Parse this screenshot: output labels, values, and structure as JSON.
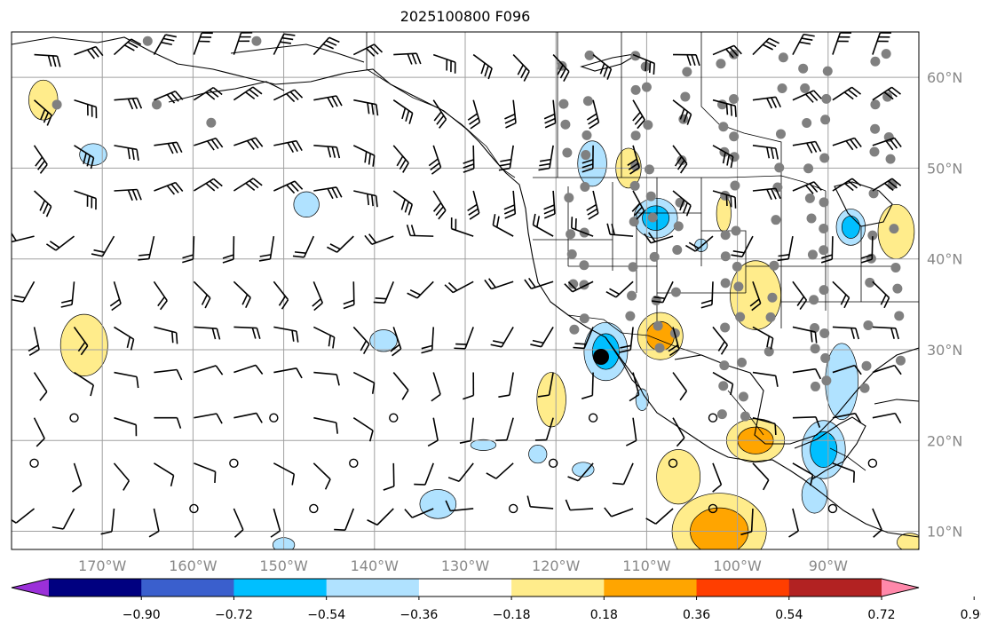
{
  "title": "2025100800 F096",
  "map": {
    "projection": "PlateCarree",
    "lon_range": [
      -180,
      -80
    ],
    "lat_range": [
      8,
      65
    ],
    "gridlines": true,
    "lon_labels": [
      "170°W",
      "160°W",
      "150°W",
      "140°W",
      "130°W",
      "120°W",
      "110°W",
      "100°W",
      "90°W"
    ],
    "lat_labels": [
      "60°N",
      "50°N",
      "40°N",
      "30°N",
      "20°N",
      "10°N"
    ]
  },
  "colorbar": {
    "extend": "both",
    "levels": [
      -1.08,
      -0.9,
      -0.72,
      -0.54,
      -0.36,
      -0.18,
      0.18,
      0.36,
      0.54,
      0.72,
      0.9,
      1.08
    ],
    "tick_labels": [
      "−0.90",
      "−0.72",
      "−0.54",
      "−0.36",
      "−0.18",
      "0.18",
      "0.36",
      "0.54",
      "0.72",
      "0.90"
    ],
    "colors": [
      "#9b30d9",
      "#000080",
      "#3a5fcd",
      "#00bfff",
      "#b0e2ff",
      "#ffffff",
      "#ffec8b",
      "#ffa500",
      "#ff3e00",
      "#b22222",
      "#ff88aa"
    ]
  },
  "colors": {
    "land": "#ffffff",
    "coast": "#000000",
    "grid": "#a0a0a0",
    "station_dot": "#808080"
  },
  "chart_data": {
    "type": "heatmap",
    "variable_title": "2025100800 F096",
    "blobs": [
      {
        "lon": -176.5,
        "lat": 57.5,
        "rlon": 1.6,
        "rlat": 2.2,
        "value": 0.45
      },
      {
        "lon": -171.0,
        "lat": 51.5,
        "rlon": 1.5,
        "rlat": 1.2,
        "value": -0.45
      },
      {
        "lon": -172.0,
        "lat": 30.5,
        "rlon": 2.6,
        "rlat": 3.4,
        "value": 0.45
      },
      {
        "lon": -147.5,
        "lat": 46.0,
        "rlon": 1.4,
        "rlat": 1.4,
        "value": -0.4
      },
      {
        "lon": -139.0,
        "lat": 31.0,
        "rlon": 1.5,
        "rlat": 1.2,
        "value": -0.45
      },
      {
        "lon": -120.5,
        "lat": 24.5,
        "rlon": 1.6,
        "rlat": 3.0,
        "value": 0.5
      },
      {
        "lon": -116.0,
        "lat": 50.5,
        "rlon": 1.6,
        "rlat": 2.5,
        "value": -0.45
      },
      {
        "lon": -112.0,
        "lat": 50.0,
        "rlon": 1.4,
        "rlat": 2.2,
        "value": 0.45
      },
      {
        "lon": -109.0,
        "lat": 44.5,
        "rlon": 2.4,
        "rlat": 2.2,
        "value": -0.6
      },
      {
        "lon": -114.5,
        "lat": 29.8,
        "rlon": 2.4,
        "rlat": 3.2,
        "value": -0.7
      },
      {
        "lon": -108.5,
        "lat": 31.5,
        "rlon": 2.5,
        "rlat": 2.6,
        "value": 0.65
      },
      {
        "lon": -101.5,
        "lat": 45.0,
        "rlon": 0.8,
        "rlat": 2.0,
        "value": 0.45
      },
      {
        "lon": -98.0,
        "lat": 36.0,
        "rlon": 2.8,
        "rlat": 3.8,
        "value": 0.5
      },
      {
        "lon": -106.5,
        "lat": 16.0,
        "rlon": 2.4,
        "rlat": 3.0,
        "value": 0.45
      },
      {
        "lon": -102.0,
        "lat": 10.0,
        "rlon": 5.2,
        "rlat": 4.2,
        "value": 0.55
      },
      {
        "lon": -98.0,
        "lat": 20.0,
        "rlon": 3.2,
        "rlat": 2.4,
        "value": 0.6
      },
      {
        "lon": -88.5,
        "lat": 26.5,
        "rlon": 1.8,
        "rlat": 4.2,
        "value": -0.45
      },
      {
        "lon": -90.5,
        "lat": 19.0,
        "rlon": 2.4,
        "rlat": 3.2,
        "value": -0.65
      },
      {
        "lon": -91.5,
        "lat": 14.0,
        "rlon": 1.4,
        "rlat": 2.0,
        "value": -0.45
      },
      {
        "lon": -82.5,
        "lat": 43.0,
        "rlon": 2.0,
        "rlat": 3.0,
        "value": 0.45
      },
      {
        "lon": -87.5,
        "lat": 43.5,
        "rlon": 1.6,
        "rlat": 2.0,
        "value": -0.55
      },
      {
        "lon": -133.0,
        "lat": 13.0,
        "rlon": 2.0,
        "rlat": 1.6,
        "value": -0.45
      },
      {
        "lon": -128.0,
        "lat": 19.5,
        "rlon": 1.4,
        "rlat": 0.6,
        "value": -0.4
      },
      {
        "lon": -122.0,
        "lat": 18.5,
        "rlon": 1.0,
        "rlat": 1.0,
        "value": -0.4
      },
      {
        "lon": -117.0,
        "lat": 16.8,
        "rlon": 1.2,
        "rlat": 0.8,
        "value": -0.45
      },
      {
        "lon": -110.5,
        "lat": 24.5,
        "rlon": 0.7,
        "rlat": 1.2,
        "value": -0.45
      },
      {
        "lon": -104.0,
        "lat": 41.5,
        "rlon": 0.7,
        "rlat": 0.7,
        "value": -0.4
      },
      {
        "lon": -150.0,
        "lat": 8.5,
        "rlon": 1.2,
        "rlat": 0.8,
        "value": -0.4
      },
      {
        "lon": -81.0,
        "lat": 8.8,
        "rlon": 1.4,
        "rlat": 1.0,
        "value": 0.45
      }
    ],
    "wind_barbs": "synthetic field of wind barbs on a regular 5-degree grid",
    "stations": "gray station markers across continental North America"
  }
}
